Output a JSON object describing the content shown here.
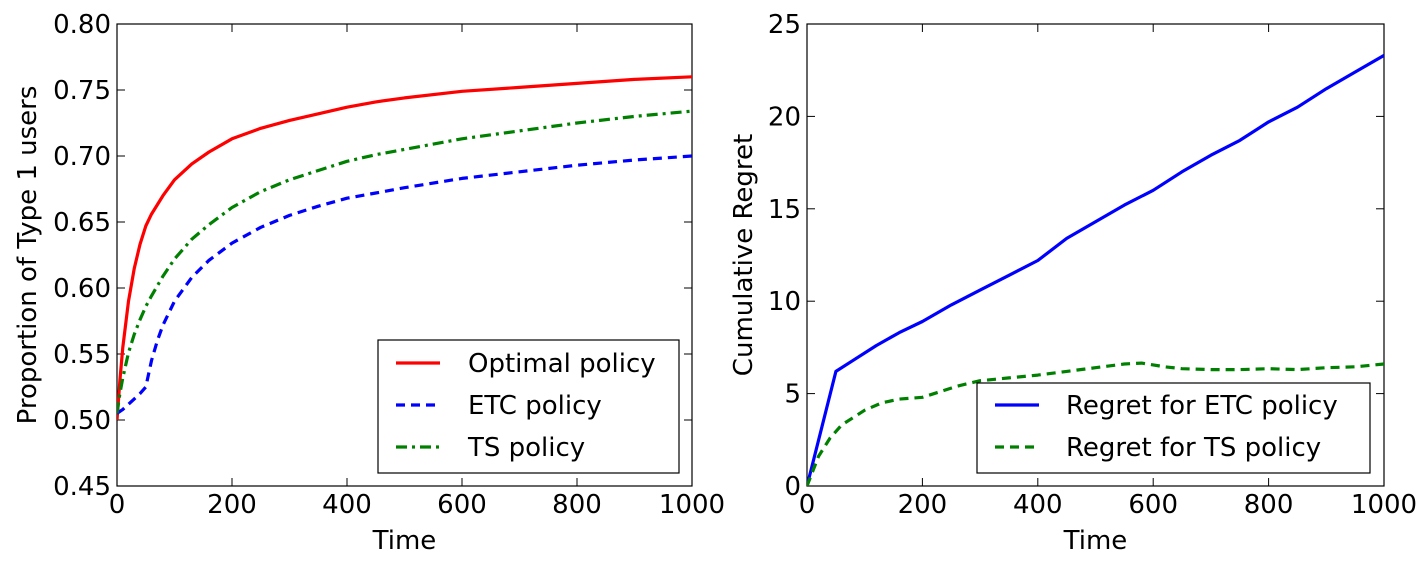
{
  "chart_data": [
    {
      "type": "line",
      "title": "",
      "xlabel": "Time",
      "ylabel": "Proportion of Type 1 users",
      "xlim": [
        0,
        1000
      ],
      "ylim": [
        0.45,
        0.8
      ],
      "xticks": [
        "0",
        "200",
        "400",
        "600",
        "800",
        "1000"
      ],
      "yticks": [
        "0.45",
        "0.50",
        "0.55",
        "0.60",
        "0.65",
        "0.70",
        "0.75",
        "0.80"
      ],
      "grid": false,
      "legend_position": "lower-right",
      "series": [
        {
          "name": "Optimal policy",
          "color": "#ff0000",
          "dash": "solid",
          "x": [
            0,
            5,
            10,
            20,
            30,
            40,
            50,
            60,
            80,
            100,
            130,
            160,
            200,
            250,
            300,
            350,
            400,
            450,
            500,
            600,
            700,
            800,
            900,
            1000
          ],
          "y": [
            0.5,
            0.53,
            0.555,
            0.59,
            0.615,
            0.633,
            0.647,
            0.656,
            0.67,
            0.682,
            0.694,
            0.703,
            0.713,
            0.721,
            0.727,
            0.732,
            0.737,
            0.741,
            0.744,
            0.749,
            0.752,
            0.755,
            0.758,
            0.76
          ]
        },
        {
          "name": "ETC policy",
          "color": "#0000ff",
          "dash": "dashed",
          "x": [
            0,
            10,
            20,
            30,
            40,
            50,
            60,
            70,
            80,
            100,
            130,
            160,
            200,
            250,
            300,
            350,
            400,
            450,
            500,
            600,
            700,
            800,
            900,
            1000
          ],
          "y": [
            0.505,
            0.508,
            0.512,
            0.516,
            0.52,
            0.525,
            0.545,
            0.56,
            0.572,
            0.59,
            0.608,
            0.621,
            0.634,
            0.646,
            0.655,
            0.662,
            0.668,
            0.672,
            0.676,
            0.683,
            0.688,
            0.693,
            0.697,
            0.7
          ]
        },
        {
          "name": "TS policy",
          "color": "#008000",
          "dash": "dashdot",
          "x": [
            0,
            5,
            10,
            20,
            30,
            40,
            50,
            60,
            80,
            100,
            130,
            160,
            200,
            250,
            300,
            350,
            400,
            450,
            500,
            600,
            700,
            800,
            900,
            1000
          ],
          "y": [
            0.505,
            0.52,
            0.532,
            0.551,
            0.565,
            0.576,
            0.586,
            0.594,
            0.609,
            0.622,
            0.637,
            0.648,
            0.661,
            0.673,
            0.682,
            0.689,
            0.696,
            0.701,
            0.705,
            0.713,
            0.719,
            0.725,
            0.73,
            0.734
          ]
        }
      ]
    },
    {
      "type": "line",
      "title": "",
      "xlabel": "Time",
      "ylabel": "Cumulative Regret",
      "xlim": [
        0,
        1000
      ],
      "ylim": [
        0,
        25
      ],
      "xticks": [
        "0",
        "200",
        "400",
        "600",
        "800",
        "1000"
      ],
      "yticks": [
        "0",
        "5",
        "10",
        "15",
        "20",
        "25"
      ],
      "grid": false,
      "legend_position": "lower-right",
      "series": [
        {
          "name": "Regret for ETC policy",
          "color": "#0000ff",
          "dash": "solid",
          "x": [
            0,
            50,
            80,
            120,
            160,
            200,
            250,
            300,
            350,
            400,
            450,
            500,
            550,
            600,
            650,
            700,
            750,
            800,
            850,
            900,
            950,
            1000
          ],
          "y": [
            0,
            6.2,
            6.8,
            7.6,
            8.3,
            8.9,
            9.8,
            10.6,
            11.4,
            12.2,
            13.4,
            14.3,
            15.2,
            16.0,
            17.0,
            17.9,
            18.7,
            19.7,
            20.5,
            21.5,
            22.4,
            23.3
          ]
        },
        {
          "name": "Regret for TS policy",
          "color": "#008000",
          "dash": "dashed",
          "x": [
            0,
            20,
            40,
            60,
            80,
            100,
            130,
            160,
            200,
            230,
            260,
            300,
            350,
            400,
            450,
            500,
            550,
            580,
            620,
            650,
            700,
            750,
            800,
            850,
            900,
            950,
            1000
          ],
          "y": [
            0,
            1.6,
            2.6,
            3.3,
            3.7,
            4.1,
            4.5,
            4.7,
            4.8,
            5.1,
            5.4,
            5.7,
            5.85,
            6.0,
            6.2,
            6.4,
            6.6,
            6.65,
            6.45,
            6.35,
            6.3,
            6.3,
            6.35,
            6.3,
            6.4,
            6.45,
            6.6
          ]
        }
      ]
    }
  ]
}
